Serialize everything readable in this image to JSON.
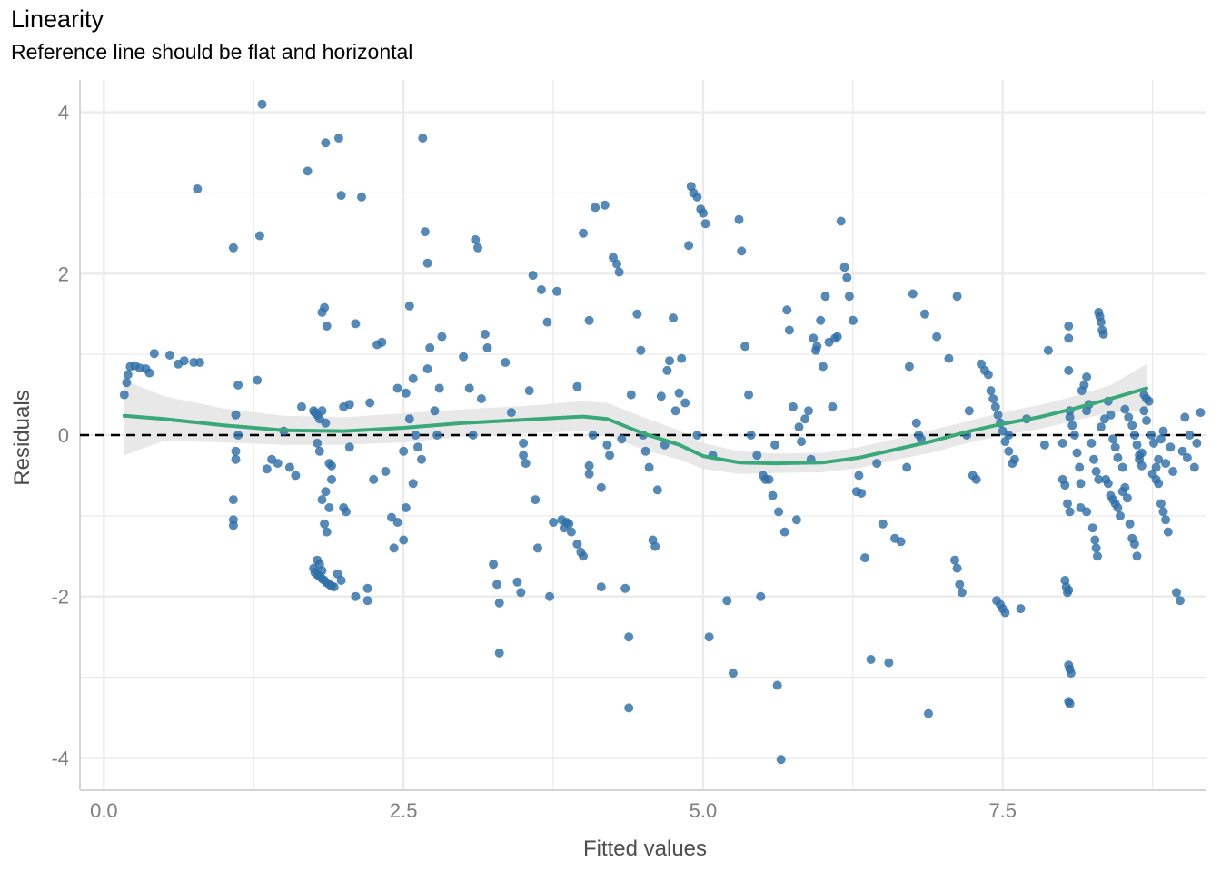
{
  "chart_data": {
    "type": "scatter",
    "title": "Linearity",
    "subtitle": "Reference line should be flat and horizontal",
    "xlabel": "Fitted values",
    "ylabel": "Residuals",
    "xlim": [
      -0.2,
      9.2
    ],
    "ylim": [
      -4.4,
      4.4
    ],
    "x_ticks": [
      0.0,
      2.5,
      5.0,
      7.5
    ],
    "x_tick_labels": [
      "0.0",
      "2.5",
      "5.0",
      "7.5"
    ],
    "y_ticks": [
      -4,
      -2,
      0,
      2,
      4
    ],
    "y_tick_labels": [
      "-4",
      "-2",
      "0",
      "2",
      "4"
    ],
    "grid": true,
    "reference_line": {
      "y": 0,
      "style": "dashed",
      "color": "#000000"
    },
    "colors": {
      "points": "#2e6fa8",
      "smooth": "#3aa97a",
      "band": "#e6e6e6",
      "grid": "#ebebeb"
    },
    "points": [
      [
        0.17,
        0.5
      ],
      [
        0.19,
        0.65
      ],
      [
        0.2,
        0.75
      ],
      [
        0.22,
        0.85
      ],
      [
        0.26,
        0.86
      ],
      [
        0.3,
        0.83
      ],
      [
        0.35,
        0.82
      ],
      [
        0.38,
        0.77
      ],
      [
        0.42,
        1.01
      ],
      [
        0.55,
        0.99
      ],
      [
        0.62,
        0.88
      ],
      [
        0.67,
        0.92
      ],
      [
        0.75,
        0.9
      ],
      [
        0.8,
        0.9
      ],
      [
        0.78,
        3.05
      ],
      [
        1.08,
        -1.05
      ],
      [
        1.08,
        -1.12
      ],
      [
        1.08,
        -0.8
      ],
      [
        1.1,
        -0.2
      ],
      [
        1.1,
        -0.3
      ],
      [
        1.1,
        0.25
      ],
      [
        1.12,
        0.62
      ],
      [
        1.12,
        0.0
      ],
      [
        1.08,
        2.32
      ],
      [
        1.28,
        0.68
      ],
      [
        1.3,
        2.47
      ],
      [
        1.32,
        4.1
      ],
      [
        1.36,
        -0.42
      ],
      [
        1.4,
        -0.3
      ],
      [
        1.45,
        -0.35
      ],
      [
        1.5,
        0.05
      ],
      [
        1.55,
        -0.4
      ],
      [
        1.6,
        -0.5
      ],
      [
        1.65,
        0.35
      ],
      [
        1.7,
        3.27
      ],
      [
        1.75,
        0.3
      ],
      [
        1.76,
        0.28
      ],
      [
        1.78,
        0.25
      ],
      [
        1.8,
        0.2
      ],
      [
        1.82,
        0.3
      ],
      [
        1.85,
        0.15
      ],
      [
        1.78,
        -0.1
      ],
      [
        1.8,
        -0.2
      ],
      [
        1.82,
        -0.8
      ],
      [
        1.85,
        -0.7
      ],
      [
        1.88,
        -0.35
      ],
      [
        1.9,
        -0.38
      ],
      [
        1.75,
        -1.65
      ],
      [
        1.76,
        -1.7
      ],
      [
        1.78,
        -1.73
      ],
      [
        1.8,
        -1.75
      ],
      [
        1.82,
        -1.78
      ],
      [
        1.84,
        -1.8
      ],
      [
        1.86,
        -1.83
      ],
      [
        1.88,
        -1.85
      ],
      [
        1.9,
        -1.87
      ],
      [
        1.92,
        -1.88
      ],
      [
        1.78,
        -1.55
      ],
      [
        1.8,
        -1.6
      ],
      [
        1.82,
        -1.68
      ],
      [
        1.84,
        -1.1
      ],
      [
        1.86,
        -1.2
      ],
      [
        1.88,
        -0.9
      ],
      [
        1.9,
        -0.55
      ],
      [
        1.82,
        1.52
      ],
      [
        1.84,
        1.58
      ],
      [
        1.86,
        1.35
      ],
      [
        1.85,
        3.62
      ],
      [
        1.96,
        3.68
      ],
      [
        1.98,
        2.97
      ],
      [
        1.95,
        -1.72
      ],
      [
        1.98,
        -1.8
      ],
      [
        2.0,
        -0.9
      ],
      [
        2.02,
        -0.95
      ],
      [
        2.05,
        -0.15
      ],
      [
        2.05,
        0.38
      ],
      [
        2.0,
        0.35
      ],
      [
        2.1,
        1.38
      ],
      [
        2.1,
        -2.0
      ],
      [
        2.15,
        2.95
      ],
      [
        2.2,
        -1.9
      ],
      [
        2.2,
        -2.05
      ],
      [
        2.22,
        0.4
      ],
      [
        2.25,
        -0.55
      ],
      [
        2.28,
        1.12
      ],
      [
        2.32,
        1.15
      ],
      [
        2.35,
        -0.45
      ],
      [
        2.4,
        -1.02
      ],
      [
        2.45,
        -1.08
      ],
      [
        2.42,
        -1.4
      ],
      [
        2.5,
        -1.3
      ],
      [
        2.45,
        0.58
      ],
      [
        2.5,
        -0.2
      ],
      [
        2.52,
        -0.9
      ],
      [
        2.55,
        0.2
      ],
      [
        2.58,
        0.7
      ],
      [
        2.52,
        0.52
      ],
      [
        2.55,
        1.6
      ],
      [
        2.58,
        -0.6
      ],
      [
        2.6,
        0.0
      ],
      [
        2.62,
        -0.15
      ],
      [
        2.65,
        -0.3
      ],
      [
        2.66,
        3.68
      ],
      [
        2.68,
        2.52
      ],
      [
        2.7,
        2.13
      ],
      [
        2.7,
        0.82
      ],
      [
        2.72,
        1.08
      ],
      [
        2.76,
        0.3
      ],
      [
        2.78,
        0.0
      ],
      [
        2.8,
        0.58
      ],
      [
        2.82,
        1.22
      ],
      [
        3.0,
        0.97
      ],
      [
        3.05,
        0.58
      ],
      [
        3.1,
        2.42
      ],
      [
        3.12,
        2.32
      ],
      [
        3.08,
        0.0
      ],
      [
        3.15,
        0.45
      ],
      [
        3.18,
        1.25
      ],
      [
        3.2,
        1.08
      ],
      [
        3.25,
        -1.6
      ],
      [
        3.28,
        -1.85
      ],
      [
        3.3,
        -2.08
      ],
      [
        3.3,
        -2.7
      ],
      [
        3.35,
        0.9
      ],
      [
        3.4,
        0.28
      ],
      [
        3.45,
        -1.82
      ],
      [
        3.48,
        -1.95
      ],
      [
        3.5,
        -0.1
      ],
      [
        3.5,
        -0.25
      ],
      [
        3.52,
        -0.35
      ],
      [
        3.55,
        0.55
      ],
      [
        3.58,
        1.98
      ],
      [
        3.6,
        -0.8
      ],
      [
        3.62,
        -1.4
      ],
      [
        3.65,
        1.8
      ],
      [
        3.7,
        1.4
      ],
      [
        3.72,
        -2.0
      ],
      [
        3.75,
        -1.08
      ],
      [
        3.78,
        1.78
      ],
      [
        3.82,
        -1.05
      ],
      [
        3.84,
        -1.15
      ],
      [
        3.86,
        -1.08
      ],
      [
        3.88,
        -1.1
      ],
      [
        3.9,
        -1.2
      ],
      [
        3.95,
        0.6
      ],
      [
        3.95,
        -1.35
      ],
      [
        3.98,
        -1.45
      ],
      [
        4.0,
        -1.5
      ],
      [
        4.0,
        2.5
      ],
      [
        4.05,
        -0.38
      ],
      [
        4.05,
        -0.48
      ],
      [
        4.05,
        1.42
      ],
      [
        4.08,
        0.0
      ],
      [
        4.1,
        2.82
      ],
      [
        4.15,
        -0.65
      ],
      [
        4.15,
        -1.88
      ],
      [
        4.18,
        2.85
      ],
      [
        4.2,
        -0.12
      ],
      [
        4.22,
        -0.25
      ],
      [
        4.25,
        2.2
      ],
      [
        4.28,
        2.12
      ],
      [
        4.3,
        2.02
      ],
      [
        4.32,
        -0.05
      ],
      [
        4.35,
        -1.9
      ],
      [
        4.38,
        -2.5
      ],
      [
        4.38,
        -3.38
      ],
      [
        4.4,
        0.5
      ],
      [
        4.45,
        1.5
      ],
      [
        4.48,
        1.05
      ],
      [
        4.5,
        0.0
      ],
      [
        4.52,
        -0.2
      ],
      [
        4.55,
        -0.4
      ],
      [
        4.58,
        -1.3
      ],
      [
        4.6,
        -1.38
      ],
      [
        4.62,
        -0.68
      ],
      [
        4.65,
        0.48
      ],
      [
        4.68,
        -0.12
      ],
      [
        4.7,
        0.8
      ],
      [
        4.72,
        0.92
      ],
      [
        4.75,
        1.45
      ],
      [
        4.77,
        0.3
      ],
      [
        4.8,
        0.52
      ],
      [
        4.82,
        0.95
      ],
      [
        4.85,
        0.4
      ],
      [
        4.88,
        2.35
      ],
      [
        4.9,
        3.08
      ],
      [
        4.92,
        3.0
      ],
      [
        4.95,
        2.95
      ],
      [
        4.95,
        0.0
      ],
      [
        4.98,
        2.8
      ],
      [
        5.0,
        2.75
      ],
      [
        5.02,
        2.62
      ],
      [
        5.05,
        -2.5
      ],
      [
        5.08,
        -0.25
      ],
      [
        5.2,
        -2.05
      ],
      [
        5.25,
        -2.95
      ],
      [
        5.3,
        2.67
      ],
      [
        5.32,
        2.28
      ],
      [
        5.35,
        1.1
      ],
      [
        5.38,
        0.5
      ],
      [
        5.4,
        0.0
      ],
      [
        5.45,
        -0.25
      ],
      [
        5.48,
        -2.0
      ],
      [
        5.5,
        -0.5
      ],
      [
        5.52,
        -0.55
      ],
      [
        5.55,
        -0.55
      ],
      [
        5.58,
        -0.75
      ],
      [
        5.6,
        -0.12
      ],
      [
        5.62,
        -3.1
      ],
      [
        5.63,
        -0.95
      ],
      [
        5.65,
        -4.02
      ],
      [
        5.68,
        -1.2
      ],
      [
        5.7,
        1.55
      ],
      [
        5.72,
        1.3
      ],
      [
        5.75,
        0.35
      ],
      [
        5.78,
        -1.05
      ],
      [
        5.8,
        0.1
      ],
      [
        5.82,
        -0.08
      ],
      [
        5.85,
        0.2
      ],
      [
        5.88,
        0.3
      ],
      [
        5.9,
        -0.3
      ],
      [
        5.92,
        1.2
      ],
      [
        5.94,
        1.05
      ],
      [
        5.95,
        1.1
      ],
      [
        5.98,
        1.42
      ],
      [
        6.0,
        0.85
      ],
      [
        6.02,
        1.72
      ],
      [
        6.05,
        1.15
      ],
      [
        6.08,
        0.35
      ],
      [
        6.1,
        1.2
      ],
      [
        6.12,
        1.22
      ],
      [
        6.15,
        2.65
      ],
      [
        6.18,
        2.08
      ],
      [
        6.2,
        1.95
      ],
      [
        6.22,
        1.72
      ],
      [
        6.25,
        1.42
      ],
      [
        6.28,
        -0.7
      ],
      [
        6.3,
        -0.5
      ],
      [
        6.32,
        -0.72
      ],
      [
        6.35,
        -1.52
      ],
      [
        6.4,
        -2.78
      ],
      [
        6.45,
        -0.35
      ],
      [
        6.5,
        -1.1
      ],
      [
        6.55,
        -2.82
      ],
      [
        6.6,
        -1.28
      ],
      [
        6.65,
        -1.32
      ],
      [
        6.7,
        -0.4
      ],
      [
        6.72,
        0.85
      ],
      [
        6.75,
        1.75
      ],
      [
        6.78,
        0.15
      ],
      [
        6.8,
        0.0
      ],
      [
        6.82,
        -0.05
      ],
      [
        6.85,
        1.5
      ],
      [
        6.88,
        -3.45
      ],
      [
        6.95,
        1.22
      ],
      [
        7.05,
        0.95
      ],
      [
        7.12,
        1.72
      ],
      [
        7.1,
        -1.55
      ],
      [
        7.12,
        -1.65
      ],
      [
        7.14,
        -1.85
      ],
      [
        7.16,
        -1.95
      ],
      [
        7.2,
        0.0
      ],
      [
        7.22,
        0.3
      ],
      [
        7.25,
        -0.5
      ],
      [
        7.28,
        -0.55
      ],
      [
        7.32,
        0.88
      ],
      [
        7.35,
        0.8
      ],
      [
        7.38,
        0.75
      ],
      [
        7.4,
        0.55
      ],
      [
        7.42,
        0.45
      ],
      [
        7.44,
        0.35
      ],
      [
        7.46,
        0.25
      ],
      [
        7.48,
        0.15
      ],
      [
        7.5,
        0.05
      ],
      [
        7.52,
        -0.08
      ],
      [
        7.55,
        -0.2
      ],
      [
        7.58,
        -0.35
      ],
      [
        7.45,
        -2.05
      ],
      [
        7.48,
        -2.1
      ],
      [
        7.5,
        -2.15
      ],
      [
        7.52,
        -2.2
      ],
      [
        7.55,
        0.0
      ],
      [
        7.6,
        -0.3
      ],
      [
        7.65,
        -2.15
      ],
      [
        7.7,
        0.2
      ],
      [
        7.85,
        -0.12
      ],
      [
        7.88,
        1.05
      ],
      [
        8.0,
        -0.1
      ],
      [
        8.0,
        -0.55
      ],
      [
        8.02,
        -0.62
      ],
      [
        8.04,
        -0.85
      ],
      [
        8.06,
        -0.95
      ],
      [
        8.02,
        -1.8
      ],
      [
        8.03,
        -1.88
      ],
      [
        8.04,
        -1.95
      ],
      [
        8.05,
        -1.92
      ],
      [
        8.05,
        -2.85
      ],
      [
        8.06,
        -2.9
      ],
      [
        8.07,
        -2.95
      ],
      [
        8.05,
        -3.3
      ],
      [
        8.06,
        -3.33
      ],
      [
        8.06,
        0.22
      ],
      [
        8.06,
        0.3
      ],
      [
        8.08,
        0.12
      ],
      [
        8.1,
        0.0
      ],
      [
        8.12,
        -0.22
      ],
      [
        8.14,
        -0.4
      ],
      [
        8.15,
        -0.6
      ],
      [
        8.16,
        0.55
      ],
      [
        8.18,
        0.62
      ],
      [
        8.2,
        0.72
      ],
      [
        8.05,
        0.8
      ],
      [
        8.05,
        1.2
      ],
      [
        8.05,
        1.35
      ],
      [
        8.2,
        0.3
      ],
      [
        8.22,
        0.38
      ],
      [
        8.24,
        -0.1
      ],
      [
        8.26,
        -0.3
      ],
      [
        8.28,
        -0.45
      ],
      [
        8.3,
        -0.55
      ],
      [
        8.32,
        0.1
      ],
      [
        8.35,
        0.2
      ],
      [
        8.38,
        0.42
      ],
      [
        8.4,
        0.25
      ],
      [
        8.42,
        -0.05
      ],
      [
        8.44,
        -0.15
      ],
      [
        8.46,
        -0.28
      ],
      [
        8.5,
        -0.4
      ],
      [
        8.52,
        0.32
      ],
      [
        8.55,
        0.22
      ],
      [
        8.58,
        0.12
      ],
      [
        8.6,
        0.0
      ],
      [
        8.62,
        -0.12
      ],
      [
        8.64,
        -0.25
      ],
      [
        8.66,
        -0.38
      ],
      [
        8.68,
        0.3
      ],
      [
        8.7,
        0.18
      ],
      [
        8.75,
        -0.48
      ],
      [
        8.78,
        -0.55
      ],
      [
        8.8,
        -0.3
      ],
      [
        8.82,
        -0.05
      ],
      [
        8.84,
        0.05
      ],
      [
        8.86,
        -0.35
      ],
      [
        8.88,
        -1.2
      ],
      [
        8.9,
        -0.15
      ],
      [
        8.92,
        -0.45
      ],
      [
        8.95,
        -1.95
      ],
      [
        8.98,
        -2.05
      ],
      [
        9.0,
        -0.2
      ],
      [
        9.02,
        0.22
      ],
      [
        9.04,
        -0.28
      ],
      [
        9.06,
        0.0
      ],
      [
        9.1,
        -0.4
      ],
      [
        9.12,
        -0.1
      ],
      [
        9.15,
        0.28
      ],
      [
        8.15,
        -0.9
      ],
      [
        8.2,
        -0.95
      ],
      [
        8.25,
        -1.15
      ],
      [
        8.27,
        -1.3
      ],
      [
        8.28,
        -1.4
      ],
      [
        8.29,
        -1.5
      ],
      [
        8.3,
        1.52
      ],
      [
        8.31,
        1.47
      ],
      [
        8.32,
        1.4
      ],
      [
        8.33,
        1.3
      ],
      [
        8.34,
        1.25
      ],
      [
        8.36,
        -0.55
      ],
      [
        8.38,
        -0.6
      ],
      [
        8.4,
        -0.75
      ],
      [
        8.42,
        -0.8
      ],
      [
        8.44,
        -0.85
      ],
      [
        8.46,
        -0.9
      ],
      [
        8.48,
        -1.0
      ],
      [
        8.5,
        -0.7
      ],
      [
        8.52,
        -0.65
      ],
      [
        8.54,
        -0.78
      ],
      [
        8.56,
        -1.1
      ],
      [
        8.58,
        -1.28
      ],
      [
        8.6,
        -1.35
      ],
      [
        8.62,
        -1.5
      ],
      [
        8.64,
        -0.3
      ],
      [
        8.66,
        -0.22
      ],
      [
        8.68,
        0.5
      ],
      [
        8.7,
        0.45
      ],
      [
        8.72,
        0.42
      ],
      [
        8.74,
        0.0
      ],
      [
        8.76,
        -0.1
      ],
      [
        8.78,
        -0.4
      ],
      [
        8.8,
        -0.6
      ],
      [
        8.82,
        -0.85
      ],
      [
        8.84,
        -0.95
      ],
      [
        8.86,
        -1.05
      ]
    ],
    "smooth": {
      "x": [
        0.17,
        0.5,
        1.0,
        1.5,
        2.0,
        2.5,
        3.0,
        3.5,
        4.0,
        4.2,
        4.5,
        4.8,
        5.0,
        5.3,
        5.6,
        6.0,
        6.3,
        6.6,
        6.9,
        7.2,
        7.5,
        7.8,
        8.1,
        8.4,
        8.7
      ],
      "y": [
        0.24,
        0.2,
        0.12,
        0.06,
        0.05,
        0.09,
        0.15,
        0.19,
        0.23,
        0.2,
        0.02,
        -0.12,
        -0.26,
        -0.34,
        -0.35,
        -0.34,
        -0.28,
        -0.18,
        -0.08,
        0.04,
        0.14,
        0.22,
        0.33,
        0.45,
        0.58
      ],
      "band_upper": [
        0.68,
        0.48,
        0.33,
        0.24,
        0.22,
        0.27,
        0.32,
        0.36,
        0.42,
        0.4,
        0.22,
        0.06,
        -0.1,
        -0.2,
        -0.23,
        -0.22,
        -0.15,
        -0.05,
        0.06,
        0.17,
        0.28,
        0.37,
        0.48,
        0.62,
        0.88
      ],
      "band_lower": [
        -0.25,
        -0.07,
        -0.09,
        -0.12,
        -0.12,
        -0.09,
        -0.02,
        0.02,
        0.05,
        0.0,
        -0.18,
        -0.3,
        -0.42,
        -0.48,
        -0.47,
        -0.46,
        -0.41,
        -0.31,
        -0.22,
        -0.1,
        0.0,
        0.07,
        0.18,
        0.28,
        0.3
      ]
    }
  }
}
